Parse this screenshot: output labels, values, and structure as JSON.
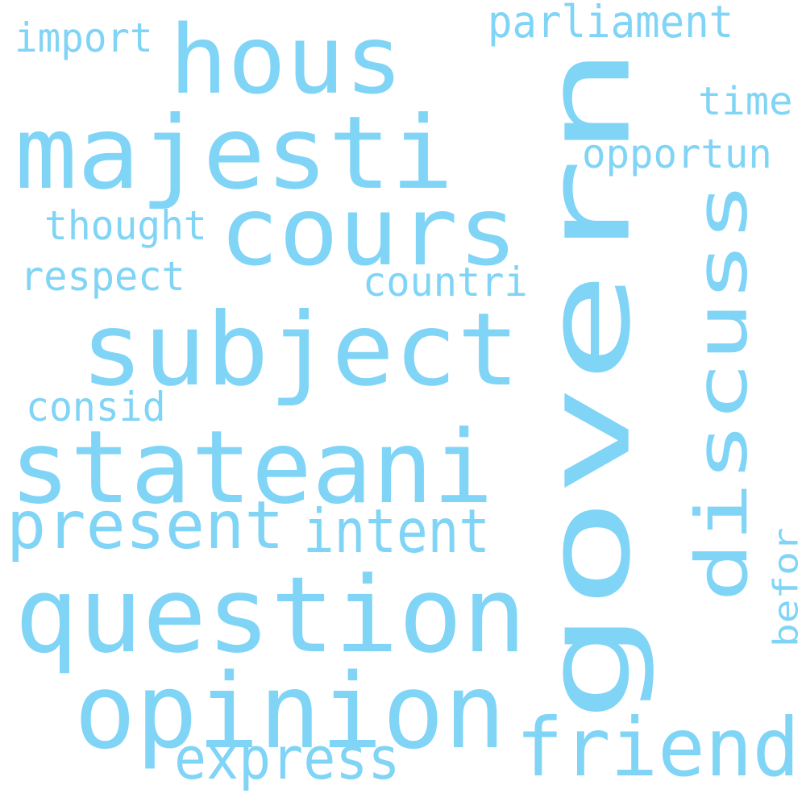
{
  "wordcloud": {
    "color": "#80d4f6",
    "words": [
      {
        "id": "govern",
        "text": "govern"
      },
      {
        "id": "hous",
        "text": "hous"
      },
      {
        "id": "majesti",
        "text": "majesti"
      },
      {
        "id": "cours",
        "text": "cours"
      },
      {
        "id": "subject",
        "text": "subject"
      },
      {
        "id": "stateani",
        "text": "stateani"
      },
      {
        "id": "question",
        "text": "question"
      },
      {
        "id": "opinion",
        "text": "opinion"
      },
      {
        "id": "discuss",
        "text": "discuss"
      },
      {
        "id": "friend",
        "text": "friend"
      },
      {
        "id": "present",
        "text": "present"
      },
      {
        "id": "intent",
        "text": "intent"
      },
      {
        "id": "express",
        "text": "express"
      },
      {
        "id": "parliament",
        "text": "parliament"
      },
      {
        "id": "import",
        "text": "import"
      },
      {
        "id": "time",
        "text": "time"
      },
      {
        "id": "opportun",
        "text": "opportun"
      },
      {
        "id": "thought",
        "text": "thought"
      },
      {
        "id": "respect",
        "text": "respect"
      },
      {
        "id": "countri",
        "text": "countri"
      },
      {
        "id": "consid",
        "text": "consid"
      },
      {
        "id": "befor",
        "text": "befor"
      }
    ]
  }
}
